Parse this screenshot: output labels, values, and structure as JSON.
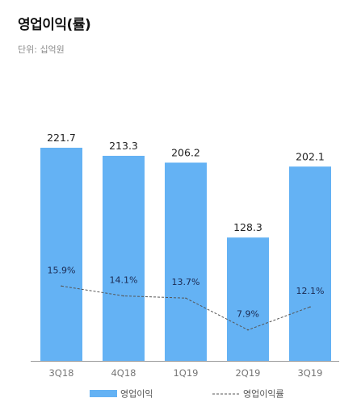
{
  "title": "영업이익(률)",
  "unit": "단위: 십억원",
  "chart_data": {
    "type": "bar",
    "categories": [
      "3Q18",
      "4Q18",
      "1Q19",
      "2Q19",
      "3Q19"
    ],
    "series": [
      {
        "name": "영업이익",
        "type": "bar",
        "values": [
          221.7,
          213.3,
          206.2,
          128.3,
          202.1
        ],
        "labels": [
          "221.7",
          "213.3",
          "206.2",
          "128.3",
          "202.1"
        ],
        "color": "#64b2f4"
      },
      {
        "name": "영업이익률",
        "type": "line",
        "style": "dashed",
        "values": [
          15.9,
          14.1,
          13.7,
          7.9,
          12.1
        ],
        "labels": [
          "15.9%",
          "14.1%",
          "13.7%",
          "7.9%",
          "12.1%"
        ],
        "color": "#555555"
      }
    ],
    "legend_position": "bottom"
  }
}
